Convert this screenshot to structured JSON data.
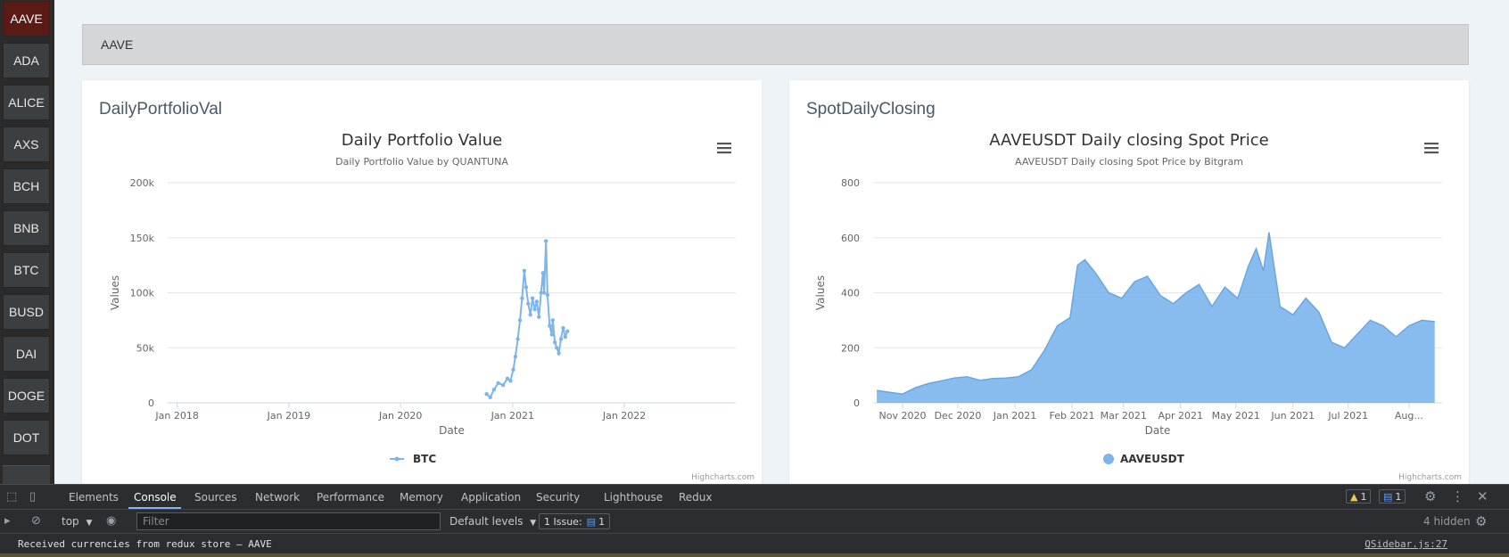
{
  "sidebar": {
    "items": [
      {
        "label": "AAVE",
        "active": true
      },
      {
        "label": "ADA"
      },
      {
        "label": "ALICE"
      },
      {
        "label": "AXS"
      },
      {
        "label": "BCH"
      },
      {
        "label": "BNB"
      },
      {
        "label": "BTC"
      },
      {
        "label": "BUSD"
      },
      {
        "label": "DAI"
      },
      {
        "label": "DOGE"
      },
      {
        "label": "DOT"
      }
    ]
  },
  "symbol_bar": {
    "value": "AAVE"
  },
  "cards": {
    "left_title": "DailyPortfolioVal",
    "right_title": "SpotDailyClosing",
    "credit": "Highcharts.com",
    "menu_icon": "hamburger-menu-icon"
  },
  "chart_data": [
    {
      "type": "line",
      "title": "Daily Portfolio Value",
      "subtitle": "Daily Portfolio Value by QUANTUNA",
      "xlabel": "Date",
      "ylabel": "Values",
      "x_ticks": [
        "Jan 2018",
        "Jan 2019",
        "Jan 2020",
        "Jan 2021",
        "Jan 2022"
      ],
      "y_ticks": [
        "0",
        "50k",
        "100k",
        "150k",
        "200k"
      ],
      "xlim": [
        "2017-12-01",
        "2022-12-31"
      ],
      "ylim": [
        0,
        200000
      ],
      "grid": true,
      "legend": "bottom-center",
      "color": "#7cb5ec",
      "series": [
        {
          "name": "BTC",
          "x": [
            "2020-10-08",
            "2020-10-20",
            "2020-11-01",
            "2020-11-15",
            "2020-12-01",
            "2020-12-15",
            "2020-12-25",
            "2021-01-03",
            "2021-01-10",
            "2021-01-18",
            "2021-01-25",
            "2021-02-01",
            "2021-02-08",
            "2021-02-14",
            "2021-02-21",
            "2021-02-28",
            "2021-03-07",
            "2021-03-14",
            "2021-03-21",
            "2021-03-28",
            "2021-04-04",
            "2021-04-10",
            "2021-04-14",
            "2021-04-20",
            "2021-04-25",
            "2021-05-02",
            "2021-05-09",
            "2021-05-12",
            "2021-05-19",
            "2021-05-25",
            "2021-06-01",
            "2021-06-08",
            "2021-06-15",
            "2021-06-22",
            "2021-06-29"
          ],
          "values": [
            8000,
            5000,
            12000,
            18000,
            16000,
            22000,
            20000,
            30000,
            42000,
            58000,
            75000,
            95000,
            120000,
            105000,
            90000,
            80000,
            95000,
            85000,
            92000,
            78000,
            100000,
            118000,
            100000,
            147000,
            98000,
            70000,
            62000,
            75000,
            55000,
            50000,
            45000,
            58000,
            68000,
            60000,
            65000
          ]
        }
      ]
    },
    {
      "type": "area",
      "title": "AAVEUSDT Daily closing Spot Price",
      "subtitle": "AAVEUSDT Daily closing Spot Price by Bitgram",
      "xlabel": "Date",
      "ylabel": "Values",
      "x_ticks": [
        "Nov 2020",
        "Dec 2020",
        "Jan 2021",
        "Feb 2021",
        "Mar 2021",
        "Apr 2021",
        "May 2021",
        "Jun 2021",
        "Jul 2021",
        "Aug..."
      ],
      "y_ticks": [
        "0",
        "200",
        "400",
        "600",
        "800"
      ],
      "xlim": [
        "2020-10-16",
        "2021-08-21"
      ],
      "ylim": [
        0,
        800
      ],
      "grid": true,
      "legend": "bottom-center",
      "color": "#7cb5ec",
      "series": [
        {
          "name": "AAVEUSDT",
          "x": [
            "2020-10-18",
            "2020-10-25",
            "2020-11-01",
            "2020-11-08",
            "2020-11-15",
            "2020-11-22",
            "2020-11-29",
            "2020-12-06",
            "2020-12-13",
            "2020-12-20",
            "2020-12-27",
            "2021-01-03",
            "2021-01-10",
            "2021-01-17",
            "2021-01-24",
            "2021-01-31",
            "2021-02-04",
            "2021-02-08",
            "2021-02-14",
            "2021-02-21",
            "2021-02-28",
            "2021-03-07",
            "2021-03-14",
            "2021-03-21",
            "2021-03-28",
            "2021-04-04",
            "2021-04-11",
            "2021-04-18",
            "2021-04-25",
            "2021-05-02",
            "2021-05-08",
            "2021-05-12",
            "2021-05-16",
            "2021-05-19",
            "2021-05-25",
            "2021-06-01",
            "2021-06-08",
            "2021-06-15",
            "2021-06-22",
            "2021-06-29",
            "2021-07-06",
            "2021-07-13",
            "2021-07-20",
            "2021-07-27",
            "2021-08-03",
            "2021-08-10",
            "2021-08-17"
          ],
          "values": [
            45,
            38,
            32,
            55,
            70,
            80,
            90,
            95,
            82,
            88,
            90,
            95,
            120,
            190,
            280,
            310,
            500,
            520,
            470,
            400,
            380,
            440,
            460,
            390,
            360,
            400,
            430,
            350,
            420,
            380,
            500,
            560,
            480,
            620,
            350,
            320,
            380,
            330,
            220,
            200,
            250,
            300,
            280,
            240,
            280,
            300,
            295
          ]
        }
      ]
    }
  ],
  "devtools": {
    "tabs": [
      "Elements",
      "Console",
      "Sources",
      "Network",
      "Performance",
      "Memory",
      "Application",
      "Security",
      "Lighthouse",
      "Redux"
    ],
    "active_tab": "Console",
    "warnings_count": "1",
    "messages_count": "1",
    "context": "top",
    "filter_placeholder": "Filter",
    "levels": "Default levels",
    "issues_label": "1 Issue:",
    "issues_count": "1",
    "hidden": "4 hidden",
    "console_message": "Received currencies from redux store — AAVE",
    "console_source": "QSidebar.js:27"
  }
}
